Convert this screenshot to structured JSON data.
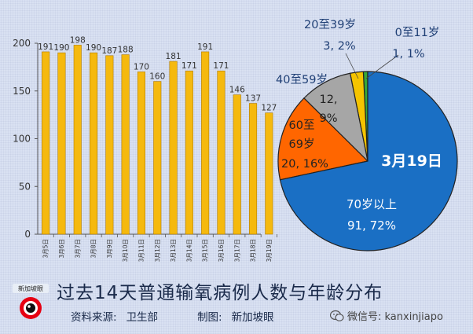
{
  "chart_data": [
    {
      "type": "bar",
      "categories": [
        "3月5日",
        "3月6日",
        "3月7日",
        "3月8日",
        "3月9日",
        "3月10日",
        "3月11日",
        "3月12日",
        "3月13日",
        "3月14日",
        "3月15日",
        "3月16日",
        "3月17日",
        "3月18日",
        "3月19日"
      ],
      "values": [
        191,
        190,
        198,
        190,
        187,
        188,
        170,
        160,
        181,
        171,
        191,
        171,
        146,
        137,
        127
      ],
      "yticks": [
        "0",
        "50",
        "100",
        "150",
        "200"
      ],
      "ylim": [
        0,
        200
      ],
      "grid": false,
      "colors": {
        "bar": "#f5b90e",
        "bar_edge": "#b07a00"
      }
    },
    {
      "type": "pie",
      "center_label": "3月19日",
      "slices": [
        {
          "label": "0至11岁",
          "count": "1",
          "pct": "1%",
          "value": 1,
          "color": "#38a838"
        },
        {
          "label": "20至39岁",
          "count": "3",
          "pct": "2%",
          "value": 3,
          "color": "#f5c400"
        },
        {
          "label": "40至59岁",
          "count": "12",
          "pct": "9%",
          "value": 12,
          "color": "#a6a6a6"
        },
        {
          "label": "60至69岁",
          "count": "20",
          "pct": "16%",
          "value": 20,
          "color": "#ff6600"
        },
        {
          "label": "70岁以上",
          "count": "91",
          "pct": "72%",
          "value": 91,
          "color": "#1a6fc4"
        }
      ]
    }
  ],
  "footer": {
    "title": "过去14天普通输氧病例人数与年龄分布",
    "source_label": "资料来源:",
    "source_value": "卫生部",
    "made_label": "制图:",
    "made_value": "新加坡眼",
    "logo_text": "新加坡眼",
    "watermark": "微信号: kanxinjiapo"
  }
}
